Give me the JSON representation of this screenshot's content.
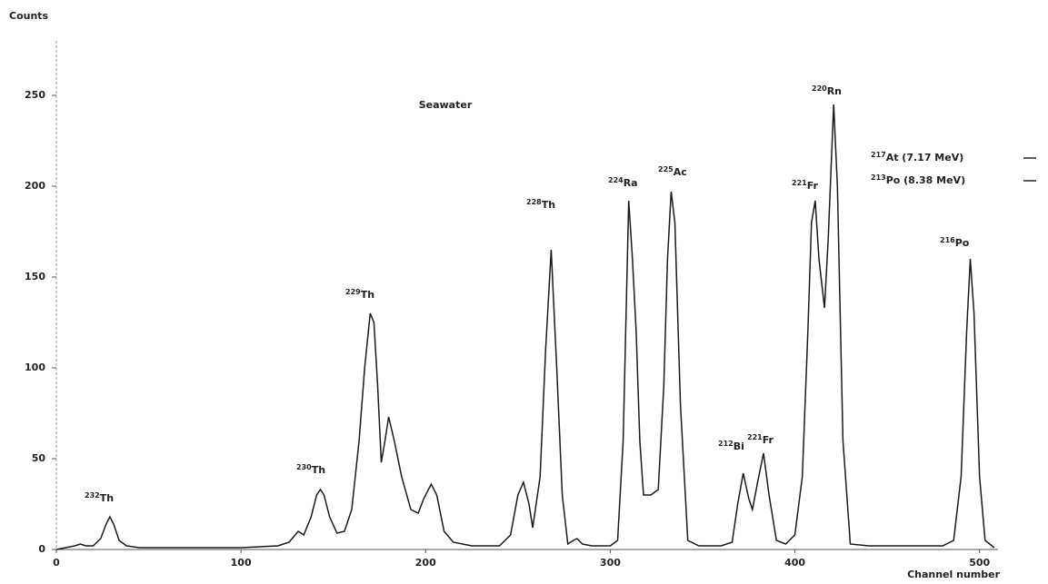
{
  "chart_data": {
    "type": "line",
    "title": "Seawater",
    "y_label": "Counts",
    "x_label": "Channel number",
    "color": "#1a1a1a",
    "xlim": [
      0,
      510
    ],
    "ylim": [
      0,
      280
    ],
    "xticks": [
      0,
      100,
      200,
      300,
      400,
      500
    ],
    "yticks": [
      0,
      50,
      100,
      150,
      200,
      250
    ],
    "x": [
      0,
      5,
      10,
      13,
      16,
      20,
      24,
      27,
      29,
      31,
      34,
      38,
      45,
      60,
      80,
      100,
      120,
      126,
      131,
      134,
      138,
      141,
      143,
      145,
      148,
      152,
      156,
      160,
      164,
      167,
      170,
      172,
      174,
      176,
      178,
      180,
      183,
      187,
      192,
      196,
      199,
      203,
      206,
      210,
      215,
      225,
      240,
      246,
      250,
      253,
      256,
      258,
      262,
      265,
      268,
      271,
      274,
      277,
      280,
      282,
      285,
      290,
      300,
      304,
      307,
      310,
      312,
      314,
      316,
      318,
      322,
      326,
      329,
      331,
      333,
      335,
      338,
      342,
      348,
      360,
      366,
      369,
      372,
      375,
      377,
      380,
      383,
      386,
      390,
      395,
      400,
      404,
      407,
      409,
      411,
      413,
      416,
      418,
      421,
      423,
      426,
      430,
      440,
      460,
      480,
      486,
      490,
      493,
      495,
      497,
      500,
      503,
      508
    ],
    "values": [
      0,
      1,
      2,
      3,
      2,
      2,
      6,
      14,
      18,
      14,
      5,
      2,
      1,
      1,
      1,
      1,
      2,
      4,
      10,
      8,
      18,
      30,
      33,
      30,
      18,
      9,
      10,
      22,
      60,
      100,
      130,
      125,
      90,
      48,
      60,
      73,
      60,
      40,
      22,
      20,
      28,
      36,
      30,
      10,
      4,
      2,
      2,
      8,
      30,
      37,
      25,
      12,
      40,
      110,
      165,
      100,
      30,
      3,
      5,
      6,
      3,
      2,
      2,
      5,
      60,
      192,
      160,
      120,
      60,
      30,
      30,
      33,
      90,
      160,
      197,
      180,
      80,
      5,
      2,
      2,
      4,
      25,
      42,
      28,
      22,
      38,
      53,
      30,
      5,
      3,
      8,
      40,
      120,
      180,
      192,
      160,
      133,
      170,
      245,
      200,
      60,
      3,
      2,
      2,
      2,
      5,
      40,
      120,
      160,
      130,
      40,
      5,
      1
    ],
    "annotations": [
      {
        "mass": "232",
        "text": "Th"
      },
      {
        "mass": "230",
        "text": "Th"
      },
      {
        "mass": "229",
        "text": "Th"
      },
      {
        "mass": "228",
        "text": "Th"
      },
      {
        "mass": "224",
        "text": "Ra"
      },
      {
        "mass": "225",
        "text": "Ac"
      },
      {
        "mass": "212",
        "text": "Bi"
      },
      {
        "mass": "221",
        "text": "Fr"
      },
      {
        "mass": "221",
        "text": "Fr"
      },
      {
        "mass": "220",
        "text": "Rn"
      },
      {
        "mass": "216",
        "text": "Po"
      },
      {
        "mass": "217",
        "text": "At (7.17 MeV)"
      },
      {
        "mass": "213",
        "text": "Po (8.38 MeV)"
      }
    ]
  }
}
